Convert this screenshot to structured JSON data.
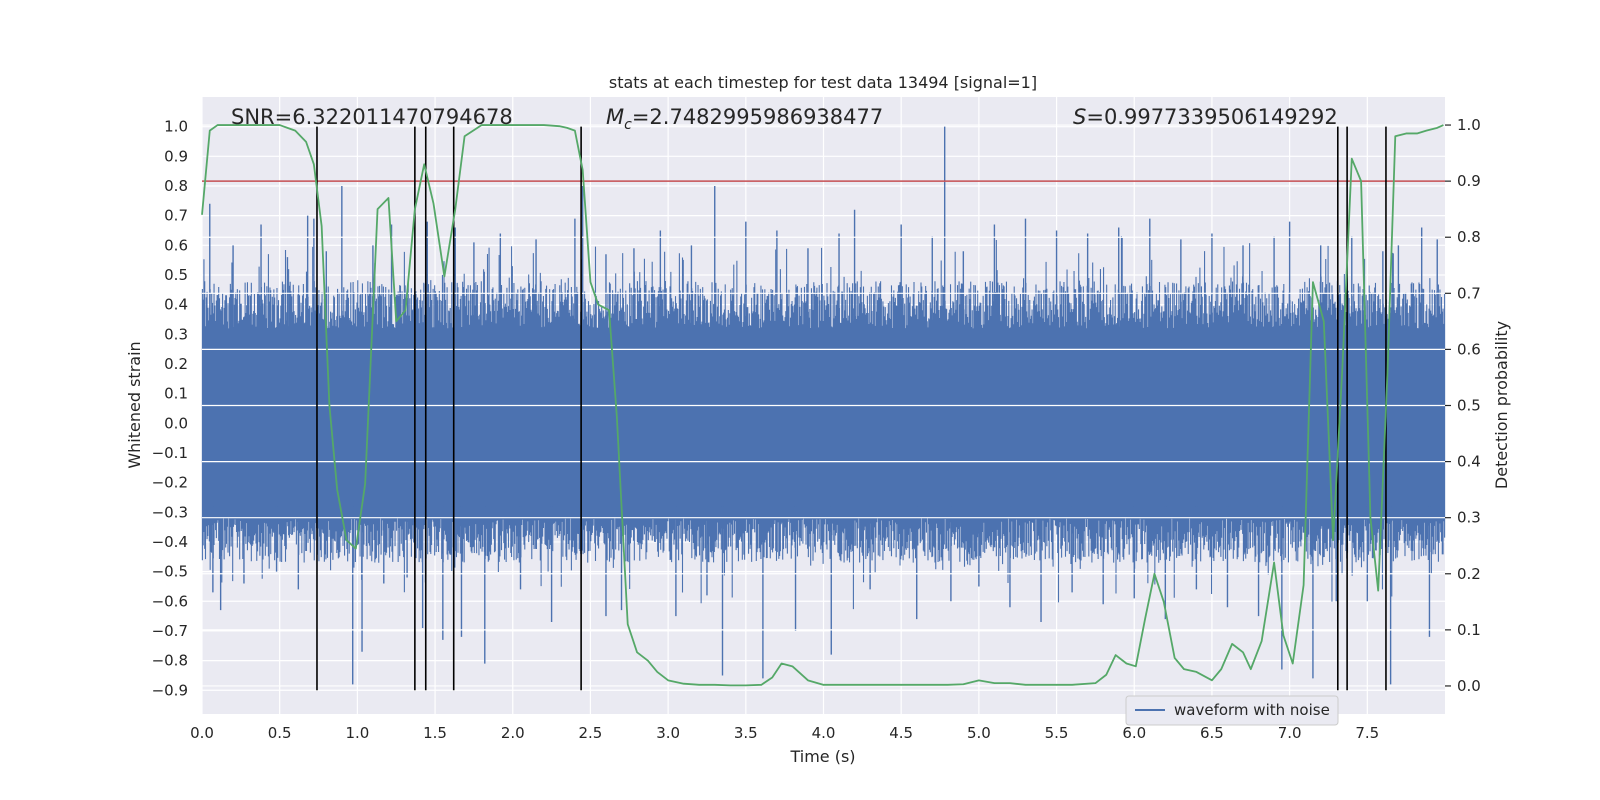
{
  "chart_data": {
    "type": "line",
    "title": "stats at each timestep for test data 13494 [signal=1]",
    "xlabel": "Time (s)",
    "ylabel_left": "Whitened strain",
    "ylabel_right": "Detection probability",
    "xlim": [
      0.0,
      8.0
    ],
    "ylim_left": [
      -0.98,
      1.1
    ],
    "ylim_right": [
      -0.05,
      1.05
    ],
    "xticks": [
      0.0,
      0.5,
      1.0,
      1.5,
      2.0,
      2.5,
      3.0,
      3.5,
      4.0,
      4.5,
      5.0,
      5.5,
      6.0,
      6.5,
      7.0,
      7.5
    ],
    "xtick_labels": [
      "0.0",
      "0.5",
      "1.0",
      "1.5",
      "2.0",
      "2.5",
      "3.0",
      "3.5",
      "4.0",
      "4.5",
      "5.0",
      "5.5",
      "6.0",
      "6.5",
      "7.0",
      "7.5"
    ],
    "yticks_left": [
      -0.9,
      -0.8,
      -0.7,
      -0.6,
      -0.5,
      -0.4,
      -0.3,
      -0.2,
      -0.1,
      0.0,
      0.1,
      0.2,
      0.3,
      0.4,
      0.5,
      0.6,
      0.7,
      0.8,
      0.9,
      1.0
    ],
    "ytick_labels_left": [
      "−0.9",
      "−0.8",
      "−0.7",
      "−0.6",
      "−0.5",
      "−0.4",
      "−0.3",
      "−0.2",
      "−0.1",
      "0.0",
      "0.1",
      "0.2",
      "0.3",
      "0.4",
      "0.5",
      "0.6",
      "0.7",
      "0.8",
      "0.9",
      "1.0"
    ],
    "yticks_right": [
      0.0,
      0.1,
      0.2,
      0.3,
      0.4,
      0.5,
      0.6,
      0.7,
      0.8,
      0.9,
      1.0
    ],
    "ytick_labels_right": [
      "0.0",
      "0.1",
      "0.2",
      "0.3",
      "0.4",
      "0.5",
      "0.6",
      "0.7",
      "0.8",
      "0.9",
      "1.0"
    ],
    "grid": true,
    "legend_position": "lower-right",
    "annotations": {
      "snr": "SNR=6.322011470794678",
      "mc_symbol": "M",
      "mc_subscript": "c",
      "mc_value": "=2.7482995986938477",
      "s_symbol": "S",
      "s_value": "=0.9977339506149292"
    },
    "series": [
      {
        "name": "waveform with noise",
        "axis": "left",
        "color": "#4c72b0",
        "style": "noise",
        "typical_amplitude": 0.32,
        "peaks": [
          [
            0.05,
            0.74
          ],
          [
            0.07,
            -0.57
          ],
          [
            0.12,
            -0.63
          ],
          [
            0.2,
            0.6
          ],
          [
            0.27,
            -0.54
          ],
          [
            0.38,
            0.67
          ],
          [
            0.48,
            -0.5
          ],
          [
            0.55,
            0.56
          ],
          [
            0.62,
            -0.56
          ],
          [
            0.68,
            0.7
          ],
          [
            0.72,
            0.69
          ],
          [
            0.8,
            0.58
          ],
          [
            0.9,
            0.8
          ],
          [
            0.97,
            -0.88
          ],
          [
            1.03,
            -0.77
          ],
          [
            1.1,
            0.6
          ],
          [
            1.17,
            -0.54
          ],
          [
            1.22,
            0.67
          ],
          [
            1.32,
            -0.52
          ],
          [
            1.42,
            -0.69
          ],
          [
            1.45,
            0.68
          ],
          [
            1.55,
            -0.73
          ],
          [
            1.63,
            0.66
          ],
          [
            1.67,
            -0.72
          ],
          [
            1.75,
            0.61
          ],
          [
            1.82,
            -0.81
          ],
          [
            1.92,
            0.64
          ],
          [
            2.05,
            -0.56
          ],
          [
            2.15,
            0.62
          ],
          [
            2.25,
            -0.67
          ],
          [
            2.4,
            0.69
          ],
          [
            2.45,
            0.8
          ],
          [
            2.6,
            -0.65
          ],
          [
            2.6,
            0.57
          ],
          [
            2.7,
            -0.63
          ],
          [
            2.78,
            0.59
          ],
          [
            2.95,
            0.65
          ],
          [
            3.05,
            -0.65
          ],
          [
            3.15,
            0.6
          ],
          [
            3.25,
            -0.58
          ],
          [
            3.3,
            0.8
          ],
          [
            3.35,
            -0.85
          ],
          [
            3.5,
            0.68
          ],
          [
            3.61,
            -0.86
          ],
          [
            3.7,
            0.65
          ],
          [
            3.82,
            -0.7
          ],
          [
            3.9,
            0.59
          ],
          [
            4.05,
            -0.78
          ],
          [
            4.1,
            0.64
          ],
          [
            4.2,
            0.72
          ],
          [
            4.3,
            -0.56
          ],
          [
            4.5,
            0.67
          ],
          [
            4.6,
            -0.66
          ],
          [
            4.7,
            0.63
          ],
          [
            4.78,
            1.0
          ],
          [
            4.82,
            -0.6
          ],
          [
            4.9,
            0.58
          ],
          [
            5.0,
            -0.55
          ],
          [
            5.1,
            0.67
          ],
          [
            5.2,
            -0.62
          ],
          [
            5.3,
            0.69
          ],
          [
            5.4,
            -0.67
          ],
          [
            5.5,
            0.65
          ],
          [
            5.6,
            -0.57
          ],
          [
            5.7,
            0.64
          ],
          [
            5.8,
            -0.61
          ],
          [
            5.9,
            0.66
          ],
          [
            6.0,
            -0.59
          ],
          [
            6.1,
            0.69
          ],
          [
            6.2,
            -0.66
          ],
          [
            6.3,
            0.62
          ],
          [
            6.4,
            -0.56
          ],
          [
            6.5,
            0.64
          ],
          [
            6.6,
            -0.62
          ],
          [
            6.7,
            0.6
          ],
          [
            6.8,
            -0.65
          ],
          [
            6.9,
            0.63
          ],
          [
            6.95,
            -0.83
          ],
          [
            7.0,
            0.68
          ],
          [
            7.15,
            -0.86
          ],
          [
            7.2,
            0.6
          ],
          [
            7.3,
            -0.6
          ],
          [
            7.4,
            0.63
          ],
          [
            7.5,
            -0.6
          ],
          [
            7.6,
            0.58
          ],
          [
            7.65,
            -0.88
          ],
          [
            7.7,
            0.6
          ],
          [
            7.85,
            0.66
          ],
          [
            7.9,
            -0.72
          ],
          [
            7.95,
            0.62
          ]
        ]
      },
      {
        "name": "",
        "axis": "right",
        "color": "#55a868",
        "x": [
          0.0,
          0.05,
          0.1,
          0.2,
          0.3,
          0.4,
          0.5,
          0.55,
          0.6,
          0.67,
          0.72,
          0.77,
          0.82,
          0.87,
          0.93,
          0.99,
          1.05,
          1.13,
          1.2,
          1.25,
          1.31,
          1.37,
          1.43,
          1.49,
          1.56,
          1.63,
          1.69,
          1.8,
          1.9,
          2.0,
          2.1,
          2.2,
          2.3,
          2.35,
          2.4,
          2.45,
          2.5,
          2.55,
          2.62,
          2.67,
          2.74,
          2.8,
          2.87,
          2.93,
          3.0,
          3.1,
          3.2,
          3.3,
          3.4,
          3.5,
          3.6,
          3.67,
          3.73,
          3.8,
          3.9,
          4.0,
          4.2,
          4.5,
          4.8,
          4.9,
          5.0,
          5.1,
          5.2,
          5.3,
          5.4,
          5.6,
          5.75,
          5.82,
          5.88,
          5.95,
          6.01,
          6.07,
          6.13,
          6.19,
          6.26,
          6.32,
          6.4,
          6.5,
          6.56,
          6.63,
          6.7,
          6.75,
          6.82,
          6.9,
          6.96,
          7.02,
          7.09,
          7.15,
          7.22,
          7.28,
          7.34,
          7.4,
          7.46,
          7.52,
          7.57,
          7.63,
          7.68,
          7.75,
          7.82,
          7.88,
          7.95,
          7.99
        ],
        "y": [
          0.84,
          0.99,
          1.0,
          1.0,
          1.0,
          1.0,
          1.0,
          0.995,
          0.99,
          0.97,
          0.93,
          0.82,
          0.5,
          0.35,
          0.26,
          0.245,
          0.36,
          0.85,
          0.87,
          0.65,
          0.67,
          0.85,
          0.93,
          0.86,
          0.73,
          0.85,
          0.98,
          1.0,
          1.0,
          1.0,
          1.0,
          1.0,
          0.998,
          0.995,
          0.99,
          0.92,
          0.72,
          0.68,
          0.67,
          0.48,
          0.11,
          0.06,
          0.045,
          0.025,
          0.01,
          0.004,
          0.002,
          0.002,
          0.001,
          0.001,
          0.002,
          0.015,
          0.04,
          0.035,
          0.01,
          0.002,
          0.002,
          0.002,
          0.002,
          0.003,
          0.01,
          0.005,
          0.005,
          0.002,
          0.002,
          0.002,
          0.005,
          0.02,
          0.055,
          0.04,
          0.035,
          0.12,
          0.2,
          0.15,
          0.05,
          0.03,
          0.025,
          0.01,
          0.03,
          0.075,
          0.06,
          0.03,
          0.08,
          0.22,
          0.09,
          0.04,
          0.18,
          0.72,
          0.65,
          0.26,
          0.57,
          0.94,
          0.9,
          0.3,
          0.17,
          0.56,
          0.98,
          0.985,
          0.985,
          0.99,
          0.995,
          1.0
        ]
      }
    ],
    "threshold": {
      "axis": "right",
      "value": 0.9,
      "color": "#c44e52"
    },
    "event_lines": {
      "x": [
        0.74,
        1.37,
        1.44,
        1.62,
        2.44,
        7.31,
        7.37,
        7.62
      ],
      "y_range": [
        -0.9,
        1.0
      ],
      "color": "#000000"
    }
  }
}
